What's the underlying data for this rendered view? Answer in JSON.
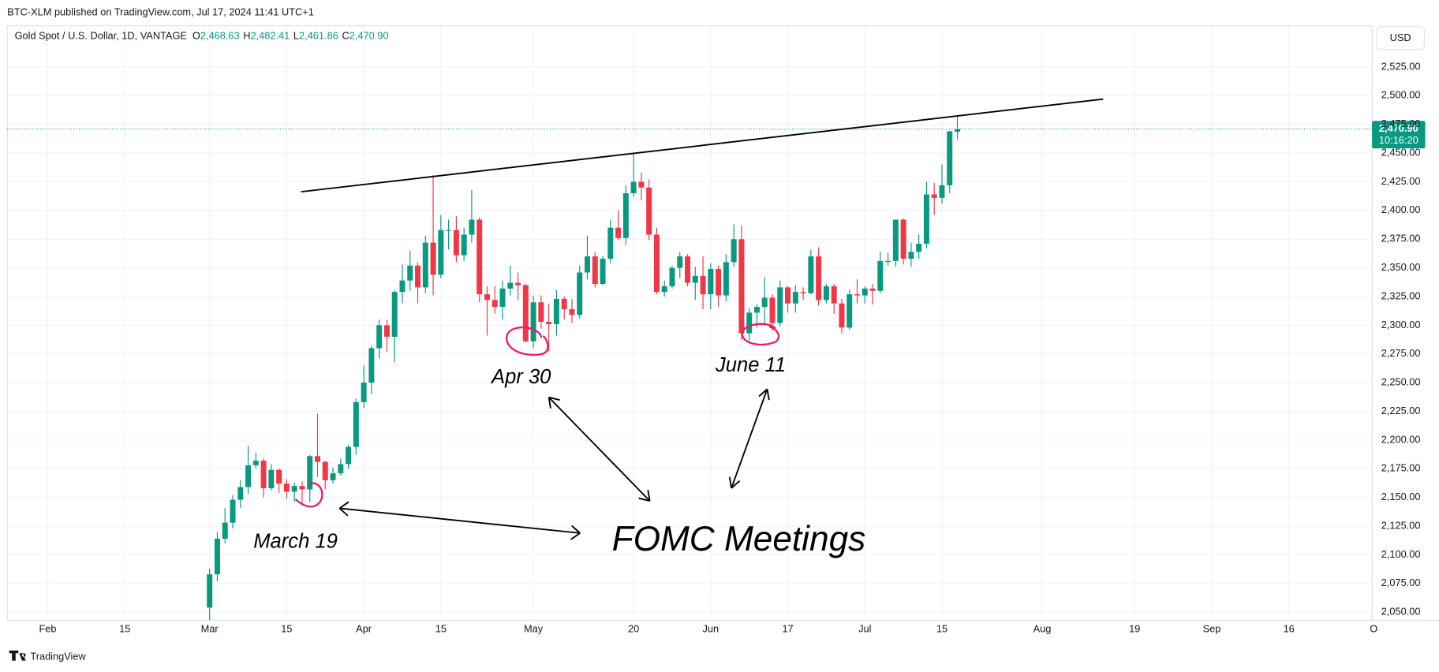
{
  "header": {
    "published": "BTC-XLM published on TradingView.com, Jul 17, 2024 11:41 UTC+1",
    "symbol": "Gold Spot / U.S. Dollar, 1D, VANTAGE",
    "ohlc": [
      {
        "key": "O",
        "text": "2,468.63"
      },
      {
        "key": "H",
        "text": "2,482.41"
      },
      {
        "key": "L",
        "text": "2,461.86"
      },
      {
        "key": "C",
        "text": "2,470.90"
      }
    ],
    "currency": "USD",
    "brand": "TradingView"
  },
  "chart_data": {
    "type": "candlestick",
    "up_color": "#089981",
    "down_color": "#f23645",
    "grid": true,
    "dates": [
      "Mar 1",
      "Mar 4",
      "Mar 5",
      "Mar 6",
      "Mar 7",
      "Mar 8",
      "Mar 11",
      "Mar 12",
      "Mar 13",
      "Mar 14",
      "Mar 15",
      "Mar 18",
      "Mar 19",
      "Mar 20",
      "Mar 21",
      "Mar 22",
      "Mar 25",
      "Mar 26",
      "Mar 27",
      "Mar 28",
      "Apr 1",
      "Apr 2",
      "Apr 3",
      "Apr 4",
      "Apr 5",
      "Apr 8",
      "Apr 9",
      "Apr 10",
      "Apr 11",
      "Apr 12",
      "Apr 15",
      "Apr 16",
      "Apr 17",
      "Apr 18",
      "Apr 19",
      "Apr 22",
      "Apr 23",
      "Apr 24",
      "Apr 25",
      "Apr 26",
      "Apr 29",
      "Apr 30",
      "May 1",
      "May 2",
      "May 3",
      "May 6",
      "May 7",
      "May 8",
      "May 9",
      "May 10",
      "May 13",
      "May 14",
      "May 15",
      "May 16",
      "May 17",
      "May 20",
      "May 21",
      "May 22",
      "May 23",
      "May 24",
      "May 27",
      "May 28",
      "May 29",
      "May 30",
      "May 31",
      "Jun 3",
      "Jun 4",
      "Jun 5",
      "Jun 6",
      "Jun 7",
      "Jun 10",
      "Jun 11",
      "Jun 12",
      "Jun 13",
      "Jun 14",
      "Jun 17",
      "Jun 18",
      "Jun 19",
      "Jun 20",
      "Jun 21",
      "Jun 24",
      "Jun 25",
      "Jun 26",
      "Jun 27",
      "Jun 28",
      "Jul 1",
      "Jul 2",
      "Jul 3",
      "Jul 4",
      "Jul 5",
      "Jul 8",
      "Jul 9",
      "Jul 10",
      "Jul 11",
      "Jul 12",
      "Jul 15",
      "Jul 16",
      "Jul 17"
    ],
    "open": [
      2054,
      2083,
      2114,
      2128,
      2148,
      2159,
      2178,
      2182,
      2158,
      2174,
      2162,
      2155,
      2160,
      2157,
      2186,
      2181,
      2165,
      2171,
      2179,
      2194,
      2233,
      2250,
      2280,
      2300,
      2290,
      2329,
      2339,
      2352,
      2333,
      2372,
      2344,
      2383,
      2383,
      2361,
      2379,
      2392,
      2327,
      2322,
      2316,
      2332,
      2337,
      2335,
      2286,
      2320,
      2303,
      2301,
      2323,
      2314,
      2309,
      2346,
      2360,
      2336,
      2358,
      2385,
      2376,
      2415,
      2425,
      2420,
      2379,
      2329,
      2334,
      2350,
      2360,
      2337,
      2343,
      2327,
      2349,
      2326,
      2355,
      2375,
      2293,
      2311,
      2316,
      2324,
      2302,
      2333,
      2319,
      2329,
      2328,
      2360,
      2322,
      2334,
      2319,
      2298,
      2327,
      2326,
      2332,
      2330,
      2356,
      2356,
      2392,
      2358,
      2364,
      2371,
      2414,
      2411,
      2422,
      2468.63
    ],
    "high": [
      2088,
      2120,
      2141,
      2152,
      2165,
      2195,
      2189,
      2184,
      2179,
      2175,
      2166,
      2163,
      2164,
      2187,
      2223,
      2182,
      2176,
      2184,
      2196,
      2236,
      2265,
      2282,
      2305,
      2305,
      2331,
      2353,
      2365,
      2355,
      2378,
      2431,
      2396,
      2392,
      2395,
      2385,
      2418,
      2394,
      2334,
      2334,
      2339,
      2352,
      2346,
      2336,
      2326,
      2326,
      2319,
      2331,
      2325,
      2323,
      2352,
      2378,
      2364,
      2360,
      2392,
      2400,
      2422,
      2450,
      2433,
      2427,
      2385,
      2339,
      2352,
      2364,
      2362,
      2351,
      2360,
      2354,
      2352,
      2362,
      2388,
      2387,
      2315,
      2318,
      2342,
      2327,
      2339,
      2334,
      2335,
      2333,
      2366,
      2368,
      2336,
      2336,
      2323,
      2331,
      2340,
      2334,
      2336,
      2364,
      2363,
      2392,
      2393,
      2372,
      2379,
      2425,
      2424,
      2440,
      2469,
      2482.41
    ],
    "low": [
      2043,
      2077,
      2110,
      2123,
      2141,
      2153,
      2175,
      2150,
      2156,
      2154,
      2149,
      2146,
      2145,
      2146,
      2168,
      2157,
      2162,
      2169,
      2175,
      2187,
      2228,
      2240,
      2271,
      2277,
      2268,
      2319,
      2330,
      2319,
      2328,
      2326,
      2341,
      2366,
      2355,
      2356,
      2372,
      2320,
      2291,
      2310,
      2305,
      2326,
      2322,
      2285,
      2280,
      2297,
      2277,
      2291,
      2305,
      2302,
      2306,
      2340,
      2333,
      2335,
      2354,
      2374,
      2370,
      2412,
      2409,
      2374,
      2327,
      2325,
      2332,
      2341,
      2334,
      2322,
      2314,
      2314,
      2316,
      2321,
      2351,
      2287,
      2286,
      2298,
      2301,
      2295,
      2299,
      2311,
      2311,
      2322,
      2327,
      2317,
      2319,
      2310,
      2293,
      2296,
      2319,
      2319,
      2318,
      2328,
      2352,
      2351,
      2353,
      2351,
      2358,
      2367,
      2396,
      2406,
      2415,
      2461.86
    ],
    "close": [
      2083,
      2114,
      2128,
      2148,
      2159,
      2178,
      2182,
      2158,
      2174,
      2162,
      2155,
      2160,
      2157,
      2186,
      2181,
      2165,
      2171,
      2179,
      2194,
      2233,
      2250,
      2280,
      2300,
      2290,
      2329,
      2339,
      2352,
      2333,
      2372,
      2344,
      2383,
      2383,
      2361,
      2379,
      2392,
      2327,
      2322,
      2316,
      2332,
      2337,
      2335,
      2286,
      2320,
      2303,
      2301,
      2323,
      2314,
      2309,
      2346,
      2360,
      2336,
      2358,
      2385,
      2376,
      2415,
      2425,
      2420,
      2379,
      2329,
      2334,
      2350,
      2360,
      2337,
      2343,
      2327,
      2349,
      2326,
      2355,
      2375,
      2293,
      2311,
      2316,
      2324,
      2302,
      2333,
      2319,
      2329,
      2328,
      2360,
      2322,
      2334,
      2319,
      2298,
      2327,
      2326,
      2332,
      2330,
      2356,
      2356,
      2392,
      2358,
      2364,
      2371,
      2414,
      2411,
      2422,
      2469,
      2470.9
    ],
    "last_price_label": "2,470.90",
    "countdown": "10:16:20",
    "ylim": [
      2043,
      2561
    ],
    "yticks": [
      {
        "value": 2050,
        "label": "2,050.00"
      },
      {
        "value": 2075,
        "label": "2,075.00"
      },
      {
        "value": 2100,
        "label": "2,100.00"
      },
      {
        "value": 2125,
        "label": "2,125.00"
      },
      {
        "value": 2150,
        "label": "2,150.00"
      },
      {
        "value": 2175,
        "label": "2,175.00"
      },
      {
        "value": 2200,
        "label": "2,200.00"
      },
      {
        "value": 2225,
        "label": "2,225.00"
      },
      {
        "value": 2250,
        "label": "2,250.00"
      },
      {
        "value": 2275,
        "label": "2,275.00"
      },
      {
        "value": 2300,
        "label": "2,300.00"
      },
      {
        "value": 2325,
        "label": "2,325.00"
      },
      {
        "value": 2350,
        "label": "2,350.00"
      },
      {
        "value": 2375,
        "label": "2,375.00"
      },
      {
        "value": 2400,
        "label": "2,400.00"
      },
      {
        "value": 2425,
        "label": "2,425.00"
      },
      {
        "value": 2450,
        "label": "2,450.00"
      },
      {
        "value": 2475,
        "label": "2,475.00"
      },
      {
        "value": 2500,
        "label": "2,500.00"
      },
      {
        "value": 2525,
        "label": "2,525.00"
      }
    ],
    "xticks": [
      {
        "value": "Feb 1",
        "label": "Feb"
      },
      {
        "value": "Feb 15",
        "label": "15"
      },
      {
        "value": "Mar 1",
        "label": "Mar"
      },
      {
        "value": "Mar 15",
        "label": "15"
      },
      {
        "value": "Apr 1",
        "label": "Apr"
      },
      {
        "value": "Apr 15",
        "label": "15"
      },
      {
        "value": "May 1",
        "label": "May"
      },
      {
        "value": "May 20",
        "label": "20"
      },
      {
        "value": "Jun 3",
        "label": "Jun"
      },
      {
        "value": "Jun 17",
        "label": "17"
      },
      {
        "value": "Jul 1",
        "label": "Jul"
      },
      {
        "value": "Jul 15",
        "label": "15"
      },
      {
        "value": "Aug 1",
        "label": "Aug"
      },
      {
        "value": "Aug 19",
        "label": "19"
      },
      {
        "value": "Sep 2",
        "label": "Sep"
      },
      {
        "value": "Sep 16",
        "label": "16"
      },
      {
        "value": "Oct 1",
        "label": "O"
      }
    ],
    "annotations": [
      "Apr 30",
      "June 11",
      "March 19",
      "FOMC Meetings"
    ]
  }
}
